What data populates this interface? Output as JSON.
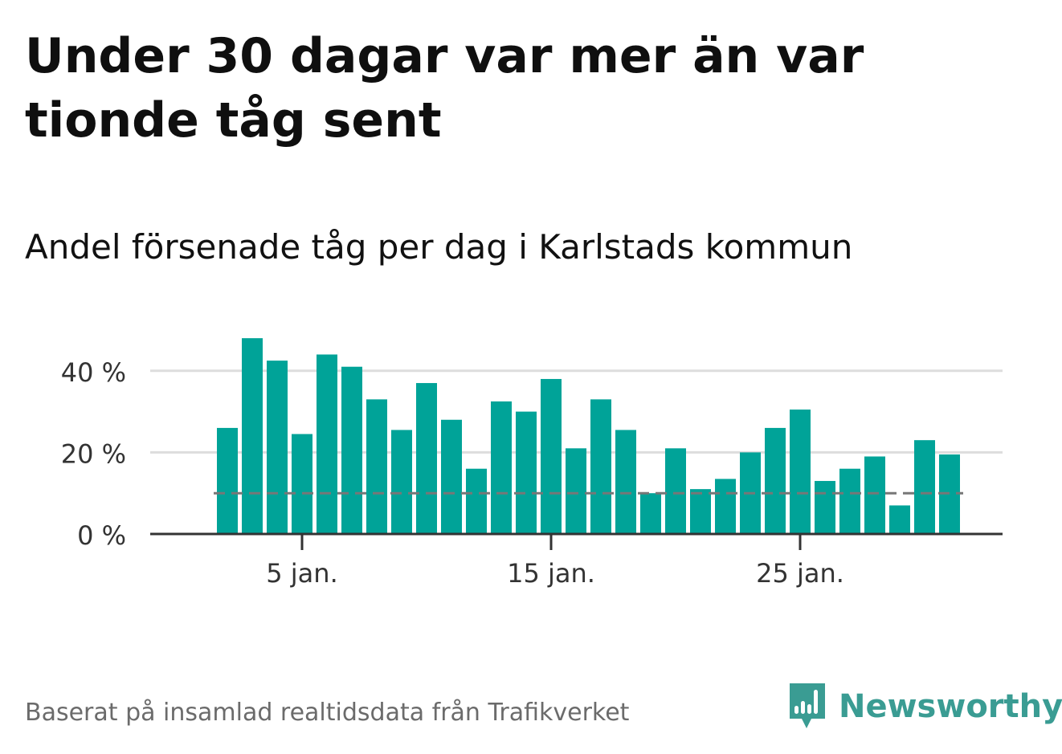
{
  "title": "Under 30 dagar var mer än var tionde tåg sent",
  "subtitle": "Andel försenade tåg per dag i Karlstads kommun",
  "footer": "Baserat på insamlad realtidsdata från Trafikverket",
  "brand": {
    "name": "Newsworthy",
    "icon": "newsworthy-logo-icon",
    "color": "#3a9c93"
  },
  "colors": {
    "bar": "#00a398",
    "grid": "#dddddd",
    "axis": "#333333",
    "reference": "#777777",
    "text": "#111111"
  },
  "chart_data": {
    "type": "bar",
    "x": [
      2,
      3,
      4,
      5,
      6,
      7,
      8,
      9,
      10,
      11,
      12,
      13,
      14,
      15,
      16,
      17,
      18,
      19,
      20,
      21,
      22,
      23,
      24,
      25,
      26,
      27,
      28,
      29,
      30,
      31
    ],
    "values": [
      26,
      48,
      42.5,
      24.5,
      44,
      41,
      33,
      25.5,
      37,
      28,
      16,
      32.5,
      30,
      38,
      21,
      33,
      25.5,
      10,
      21,
      11,
      13.5,
      20,
      26,
      30.5,
      13,
      16,
      19,
      7,
      23,
      19.5
    ],
    "value_unit": "%",
    "reference_line": 10,
    "ylim": [
      0,
      50
    ],
    "yticks": [
      {
        "value": 0,
        "label": "0 %"
      },
      {
        "value": 20,
        "label": "20 %"
      },
      {
        "value": 40,
        "label": "40 %"
      }
    ],
    "xticks": [
      {
        "value": 5,
        "label": "5 jan."
      },
      {
        "value": 15,
        "label": "15 jan."
      },
      {
        "value": 25,
        "label": "25 jan."
      }
    ],
    "grid": true,
    "legend": "none",
    "xlabel": "",
    "ylabel": ""
  }
}
